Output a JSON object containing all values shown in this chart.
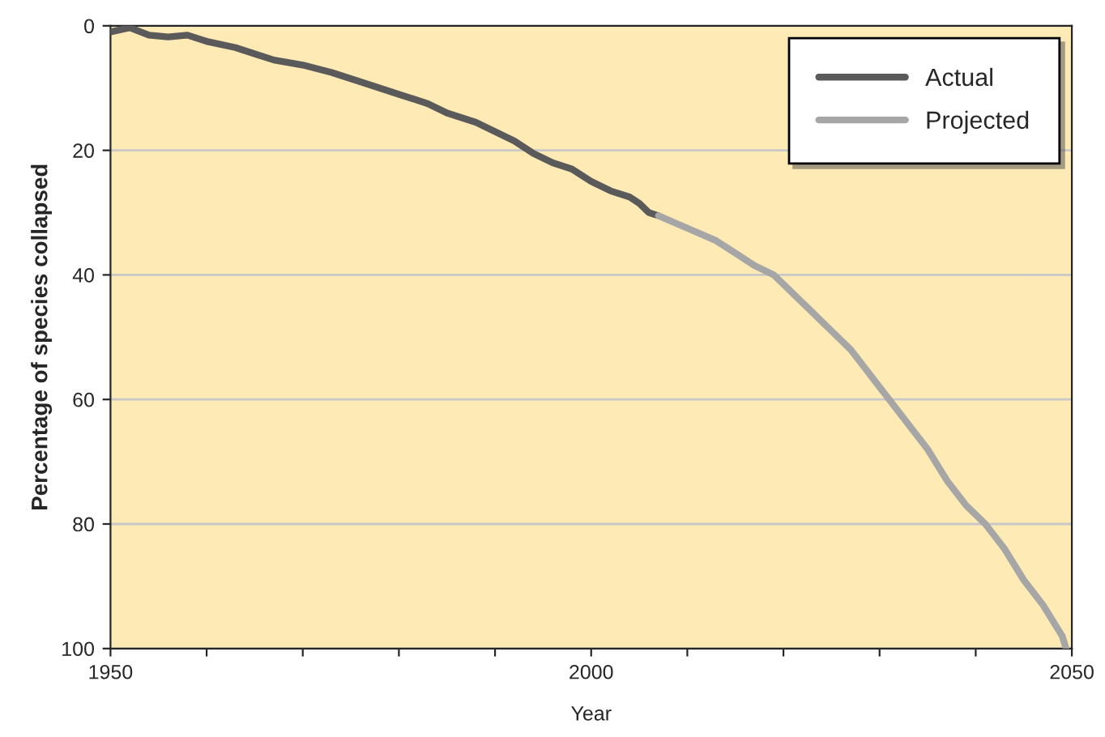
{
  "chart_data": {
    "type": "line",
    "xlabel": "Year",
    "ylabel": "Percentage of species collapsed",
    "series": [
      {
        "name": "Actual",
        "color": "#5a5a5a",
        "x": [
          1950,
          1952,
          1954,
          1956,
          1958,
          1960,
          1963,
          1965,
          1967,
          1970,
          1973,
          1976,
          1978,
          1980,
          1983,
          1985,
          1988,
          1990,
          1992,
          1994,
          1996,
          1998,
          2000,
          2002,
          2004,
          2005,
          2006,
          2007
        ],
        "values": [
          1,
          0.3,
          1.5,
          1.8,
          1.5,
          2.5,
          3.5,
          4.5,
          5.5,
          6.3,
          7.5,
          9,
          10,
          11,
          12.5,
          14,
          15.5,
          17,
          18.5,
          20.5,
          22,
          23,
          25,
          26.5,
          27.5,
          28.5,
          30,
          30.5
        ]
      },
      {
        "name": "Projected",
        "color": "#a6a6a6",
        "x": [
          2007,
          2010,
          2013,
          2015,
          2017,
          2019,
          2021,
          2023,
          2025,
          2027,
          2029,
          2031,
          2033,
          2035,
          2037,
          2039,
          2041,
          2043,
          2045,
          2047,
          2049,
          2049.4
        ],
        "values": [
          30.5,
          32.5,
          34.5,
          36.5,
          38.5,
          40,
          43,
          46,
          49,
          52,
          56,
          60,
          64,
          68,
          73,
          77,
          80,
          84,
          89,
          93,
          98,
          100
        ]
      }
    ],
    "xlim": [
      1950,
      2050
    ],
    "xticks": [
      1950,
      {
        "value": 1960,
        "label": null
      },
      {
        "value": 1970,
        "label": null
      },
      {
        "value": 1980,
        "label": null
      },
      {
        "value": 1990,
        "label": null
      },
      2000,
      {
        "value": 2010,
        "label": null
      },
      {
        "value": 2020,
        "label": null
      },
      {
        "value": 2030,
        "label": null
      },
      {
        "value": 2040,
        "label": null
      },
      2050
    ],
    "ylim": [
      100,
      0
    ],
    "yticks": [
      0,
      20,
      40,
      60,
      80,
      100
    ],
    "grid": "y",
    "legend": "top right",
    "line_style": "solid",
    "marker": "none"
  }
}
